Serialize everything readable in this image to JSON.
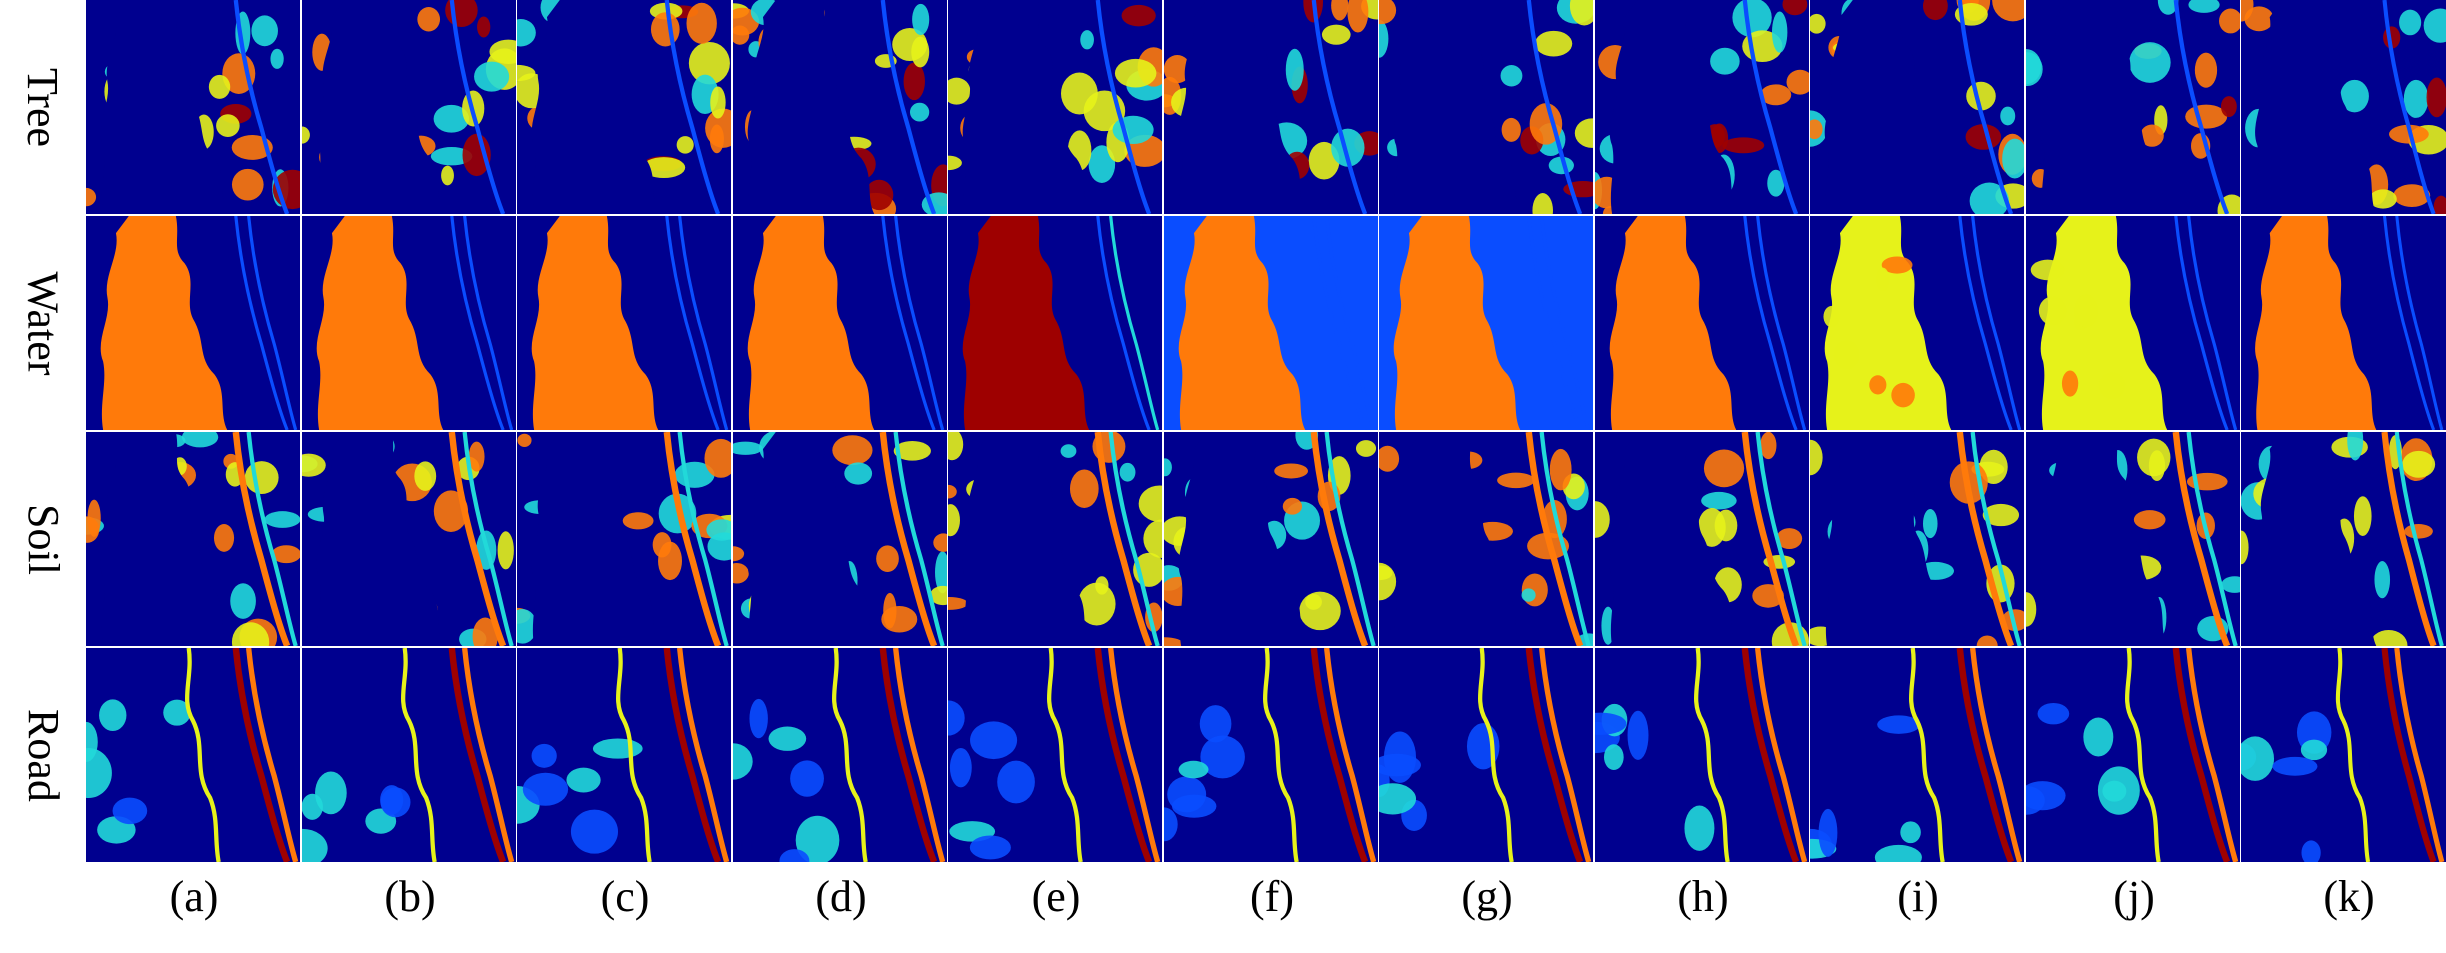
{
  "rows": [
    "Tree",
    "Water",
    "Soil",
    "Road"
  ],
  "columns": [
    "(a)",
    "(b)",
    "(c)",
    "(d)",
    "(e)",
    "(f)",
    "(g)",
    "(h)",
    "(i)",
    "(j)",
    "(k)"
  ],
  "colormap": {
    "low": "#00008f",
    "low_mid": "#0a4dff",
    "mid": "#21d9d9",
    "mid_high": "#e6f21a",
    "high": "#ff7a0a",
    "max": "#9e0000"
  }
}
